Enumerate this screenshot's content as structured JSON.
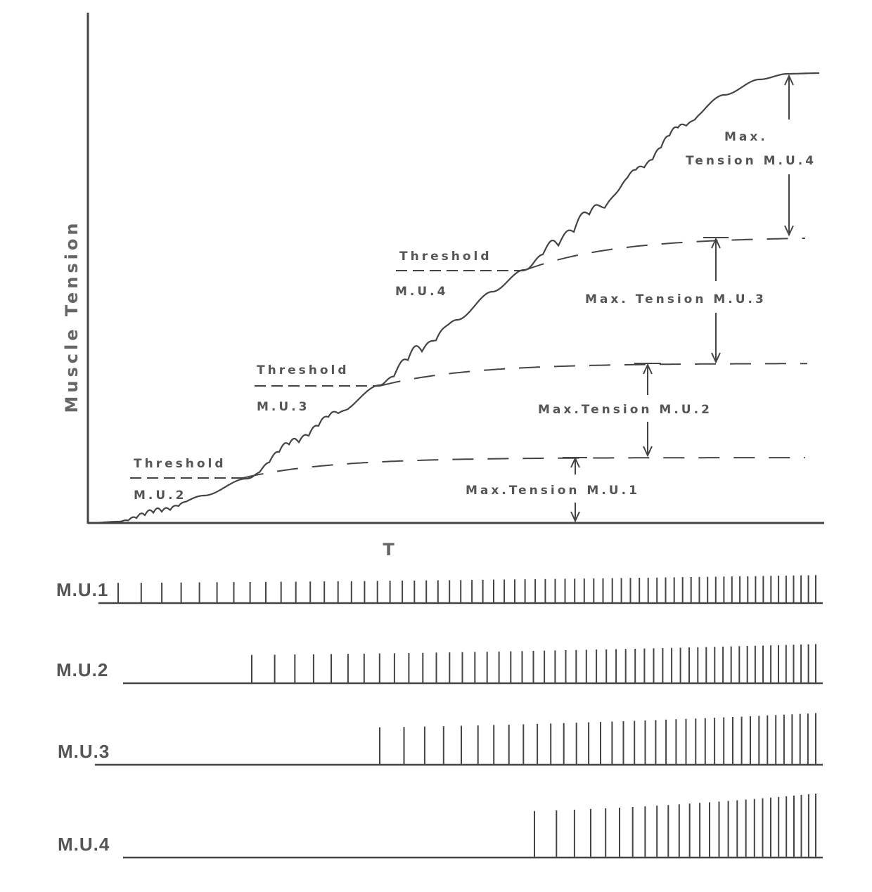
{
  "chart_data": {
    "type": "line",
    "ylabel": "Muscle Tension",
    "xlabel": "T",
    "tension_curve": {
      "levels": [
        {
          "id": "mu1",
          "max_label": "Max.Tension  M.U.1"
        },
        {
          "id": "mu2",
          "max_label": "Max.Tension  M.U.2"
        },
        {
          "id": "mu3",
          "max_label": "Max.  Tension  M.U.3"
        },
        {
          "id": "mu4",
          "max_label_line1": "Max.",
          "max_label_line2": "Tension M.U.4"
        }
      ],
      "thresholds": [
        {
          "id": "mu2",
          "line1": "Threshold",
          "line2": "M.U.2"
        },
        {
          "id": "mu3",
          "line1": "Threshold",
          "line2": "M.U.3"
        },
        {
          "id": "mu4",
          "line1": "Threshold",
          "line2": "M.U.4"
        }
      ]
    },
    "spike_trains": [
      {
        "name": "M.U.1",
        "label": "M.U.1",
        "spike_count": 64
      },
      {
        "name": "M.U.2",
        "label": "M.U.2",
        "spike_count": 52
      },
      {
        "name": "M.U.3",
        "label": "M.U.3",
        "spike_count": 38
      },
      {
        "name": "M.U.4",
        "label": "M.U.4",
        "spike_count": 27
      }
    ]
  }
}
